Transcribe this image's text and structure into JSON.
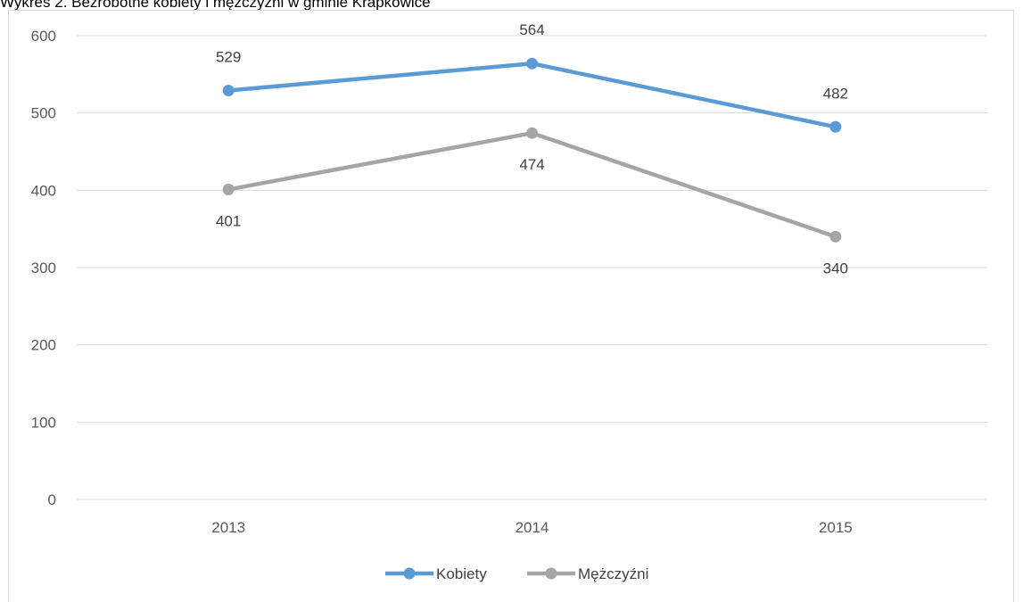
{
  "caption": "Wykres 2. Bezrobotne kobiety i mężczyźni w gminie Krapkowice",
  "chart_data": {
    "type": "line",
    "title": "",
    "xlabel": "",
    "ylabel": "",
    "categories": [
      "2013",
      "2014",
      "2015"
    ],
    "ylim": [
      0,
      600
    ],
    "yticks": [
      0,
      100,
      200,
      300,
      400,
      500,
      600
    ],
    "grid": true,
    "legend_position": "bottom",
    "series": [
      {
        "name": "Kobiety",
        "values": [
          529,
          564,
          482
        ],
        "color": "#5b9bd5",
        "label_pos": [
          "above",
          "above",
          "above"
        ]
      },
      {
        "name": "Mężczyźni",
        "values": [
          401,
          474,
          340
        ],
        "color": "#a5a5a5",
        "label_pos": [
          "below",
          "below",
          "below"
        ]
      }
    ]
  }
}
